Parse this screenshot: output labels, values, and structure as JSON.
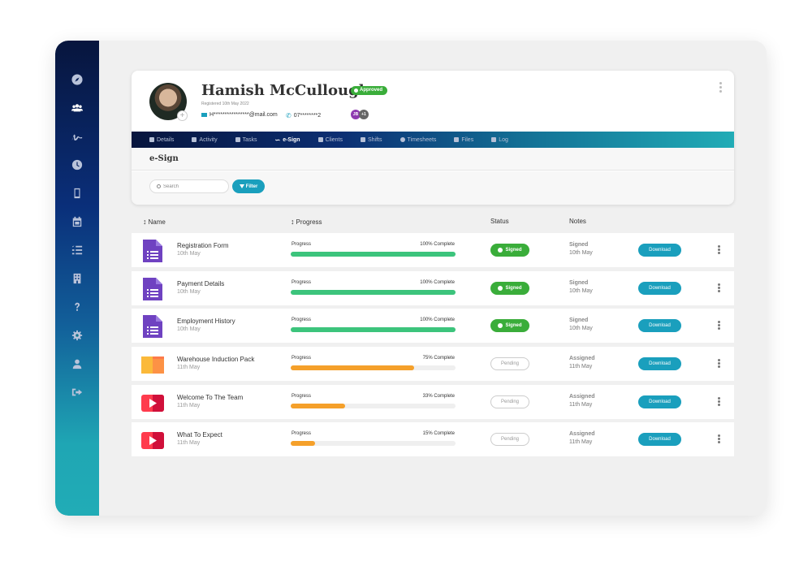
{
  "sidebar": {
    "items": [
      {
        "name": "rocket-icon",
        "active": false
      },
      {
        "name": "users-icon",
        "active": true
      },
      {
        "name": "signature-icon",
        "active": false
      },
      {
        "name": "clock-icon",
        "active": false
      },
      {
        "name": "mobile-icon",
        "active": false
      },
      {
        "name": "calendar-icon",
        "active": false
      },
      {
        "name": "checklist-icon",
        "active": false
      },
      {
        "name": "building-icon",
        "active": false
      },
      {
        "name": "help-icon",
        "active": false
      },
      {
        "name": "settings-icon",
        "active": false
      },
      {
        "name": "user-icon",
        "active": false
      },
      {
        "name": "logout-icon",
        "active": false
      }
    ]
  },
  "profile": {
    "name": "Hamish McCullough",
    "status_badge": "Approved",
    "registered": "Registered 10th May 2022",
    "email": "H****************@mail.com",
    "phone": "07********2",
    "assignees": [
      "JB",
      "+1"
    ]
  },
  "tabs": [
    {
      "label": "Details",
      "active": false
    },
    {
      "label": "Activity",
      "active": false
    },
    {
      "label": "Tasks",
      "active": false
    },
    {
      "label": "e-Sign",
      "active": true
    },
    {
      "label": "Clients",
      "active": false
    },
    {
      "label": "Shifts",
      "active": false
    },
    {
      "label": "Timesheets",
      "active": false
    },
    {
      "label": "Files",
      "active": false
    },
    {
      "label": "Log",
      "active": false
    }
  ],
  "section": {
    "title": "e-Sign",
    "search_placeholder": "Search",
    "filter_label": "Filter"
  },
  "table": {
    "headers": {
      "name": "Name",
      "progress": "Progress",
      "status": "Status",
      "notes": "Notes"
    },
    "rows": [
      {
        "name": "Registration Form",
        "date": "10th May",
        "icon": "form",
        "progress_label": "Progress",
        "percent": 100,
        "percent_label": "100% Complete",
        "status": "Signed",
        "note_title": "Signed",
        "note_date": "10th May",
        "action": "Download"
      },
      {
        "name": "Payment Details",
        "date": "10th May",
        "icon": "form",
        "progress_label": "Progress",
        "percent": 100,
        "percent_label": "100% Complete",
        "status": "Signed",
        "note_title": "Signed",
        "note_date": "10th May",
        "action": "Download"
      },
      {
        "name": "Employment History",
        "date": "10th May",
        "icon": "form",
        "progress_label": "Progress",
        "percent": 100,
        "percent_label": "100% Complete",
        "status": "Signed",
        "note_title": "Signed",
        "note_date": "10th May",
        "action": "Download"
      },
      {
        "name": "Warehouse Induction Pack",
        "date": "11th May",
        "icon": "folder",
        "progress_label": "Progress",
        "percent": 75,
        "percent_label": "75% Complete",
        "status": "Pending",
        "note_title": "Assigned",
        "note_date": "11th May",
        "action": "Download"
      },
      {
        "name": "Welcome To The Team",
        "date": "11th May",
        "icon": "video",
        "progress_label": "Progress",
        "percent": 33,
        "percent_label": "33% Complete",
        "status": "Pending",
        "note_title": "Assigned",
        "note_date": "11th May",
        "action": "Download"
      },
      {
        "name": "What To Expect",
        "date": "11th May",
        "icon": "video",
        "progress_label": "Progress",
        "percent": 15,
        "percent_label": "15% Complete",
        "status": "Pending",
        "note_title": "Assigned",
        "note_date": "11th May",
        "action": "Download"
      }
    ]
  },
  "colors": {
    "accent": "#1a9fbd",
    "success": "#3aad3a",
    "progress_complete": "#3cc47c",
    "progress_partial": "#f5a02a",
    "form_icon": "#6f42c1",
    "video_icon": "#e8203a"
  }
}
